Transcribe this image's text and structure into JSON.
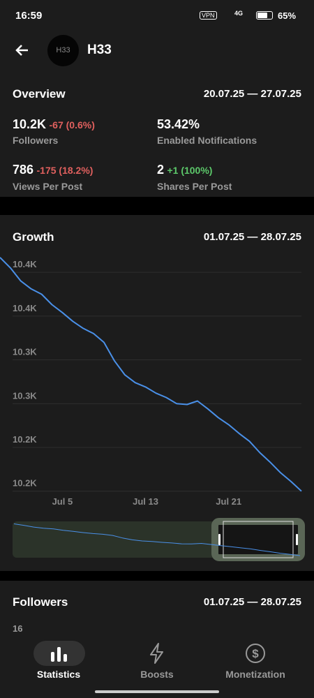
{
  "status_bar": {
    "time": "16:59",
    "vpn": "VPN",
    "network": "4G",
    "battery": "65%"
  },
  "header": {
    "avatar": "H33",
    "title": "H33"
  },
  "overview": {
    "title": "Overview",
    "date_range": "20.07.25 — 27.07.25",
    "stats": [
      {
        "value": "10.2K",
        "change": "-67 (0.6%)",
        "label": "Followers"
      },
      {
        "value": "53.42%",
        "label": "Enabled Notifications"
      },
      {
        "value": "786",
        "change": "-175 (18.2%)",
        "label": "Views Per Post"
      },
      {
        "value": "2",
        "change": "+1 (100%)",
        "label": "Shares Per Post"
      }
    ]
  },
  "growth": {
    "title": "Growth",
    "date_range": "01.07.25 — 28.07.25",
    "chart_data": {
      "type": "line",
      "color": "#4a90e8",
      "categories": [
        null,
        null,
        null,
        null,
        null,
        null,
        "Jul 5",
        null,
        null,
        null,
        null,
        null,
        null,
        null,
        "Jul 13",
        null,
        null,
        null,
        null,
        null,
        null,
        null,
        "Jul 21",
        null,
        null,
        null,
        null,
        null,
        null,
        null
      ],
      "series": [
        {
          "name": "Followers",
          "color": "#4a90e8",
          "values": [
            10442,
            10430,
            10415,
            10406,
            10400,
            10388,
            10379,
            10369,
            10361,
            10355,
            10345,
            10324,
            10308,
            10299,
            10294,
            10287,
            10282,
            10275,
            10274,
            10278,
            10269,
            10259,
            10251,
            10241,
            10232,
            10219,
            10208,
            10196,
            10186,
            10175
          ]
        }
      ],
      "ylim": [
        10170,
        10445
      ],
      "yticks": [
        {
          "value": 10425,
          "label": "10.4K"
        },
        {
          "value": 10375,
          "label": "10.4K"
        },
        {
          "value": 10325,
          "label": "10.3K"
        },
        {
          "value": 10275,
          "label": "10.3K"
        },
        {
          "value": 10225,
          "label": "10.2K"
        },
        {
          "value": 10175,
          "label": "10.2K"
        }
      ],
      "grid": true
    }
  },
  "followers": {
    "title": "Followers",
    "date_range": "01.07.25 — 28.07.25",
    "first_tick": "16"
  },
  "nav": {
    "items": [
      "Statistics",
      "Boosts",
      "Monetization"
    ]
  }
}
